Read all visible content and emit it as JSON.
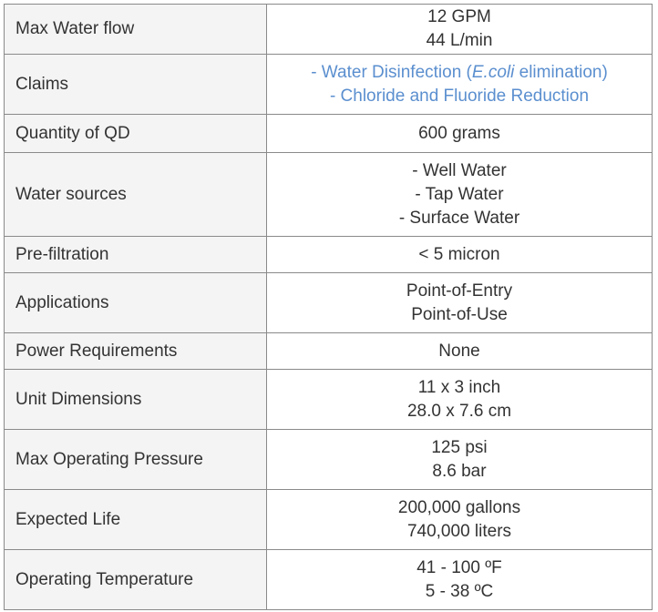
{
  "spec_table": {
    "rows": [
      {
        "label": "Max Water flow",
        "values": [
          "12 GPM",
          "44 L/min"
        ]
      },
      {
        "label": "Claims",
        "claims": {
          "line1_prefix": "- Water Disinfection (",
          "line1_italic": "E.coli",
          "line1_suffix": " elimination)",
          "line2": "- Chloride and Fluoride Reduction"
        },
        "claims_color": "#5b8fcf"
      },
      {
        "label": "Quantity of QD",
        "values": [
          "600 grams"
        ]
      },
      {
        "label": "Water sources",
        "values": [
          "- Well Water",
          "- Tap Water",
          "- Surface Water"
        ]
      },
      {
        "label": "Pre-filtration",
        "values": [
          "< 5 micron"
        ]
      },
      {
        "label": "Applications",
        "values": [
          "Point-of-Entry",
          "Point-of-Use"
        ]
      },
      {
        "label": "Power Requirements",
        "values": [
          "None"
        ]
      },
      {
        "label": "Unit Dimensions",
        "values": [
          "11 x 3 inch",
          "28.0 x 7.6 cm"
        ]
      },
      {
        "label": "Max Operating Pressure",
        "values": [
          "125 psi",
          "8.6 bar"
        ]
      },
      {
        "label": "Expected Life",
        "values": [
          "200,000 gallons",
          "740,000 liters"
        ]
      },
      {
        "label": "Operating Temperature",
        "values": [
          "41 - 100 ºF",
          "5 - 38 ºC"
        ]
      }
    ]
  }
}
